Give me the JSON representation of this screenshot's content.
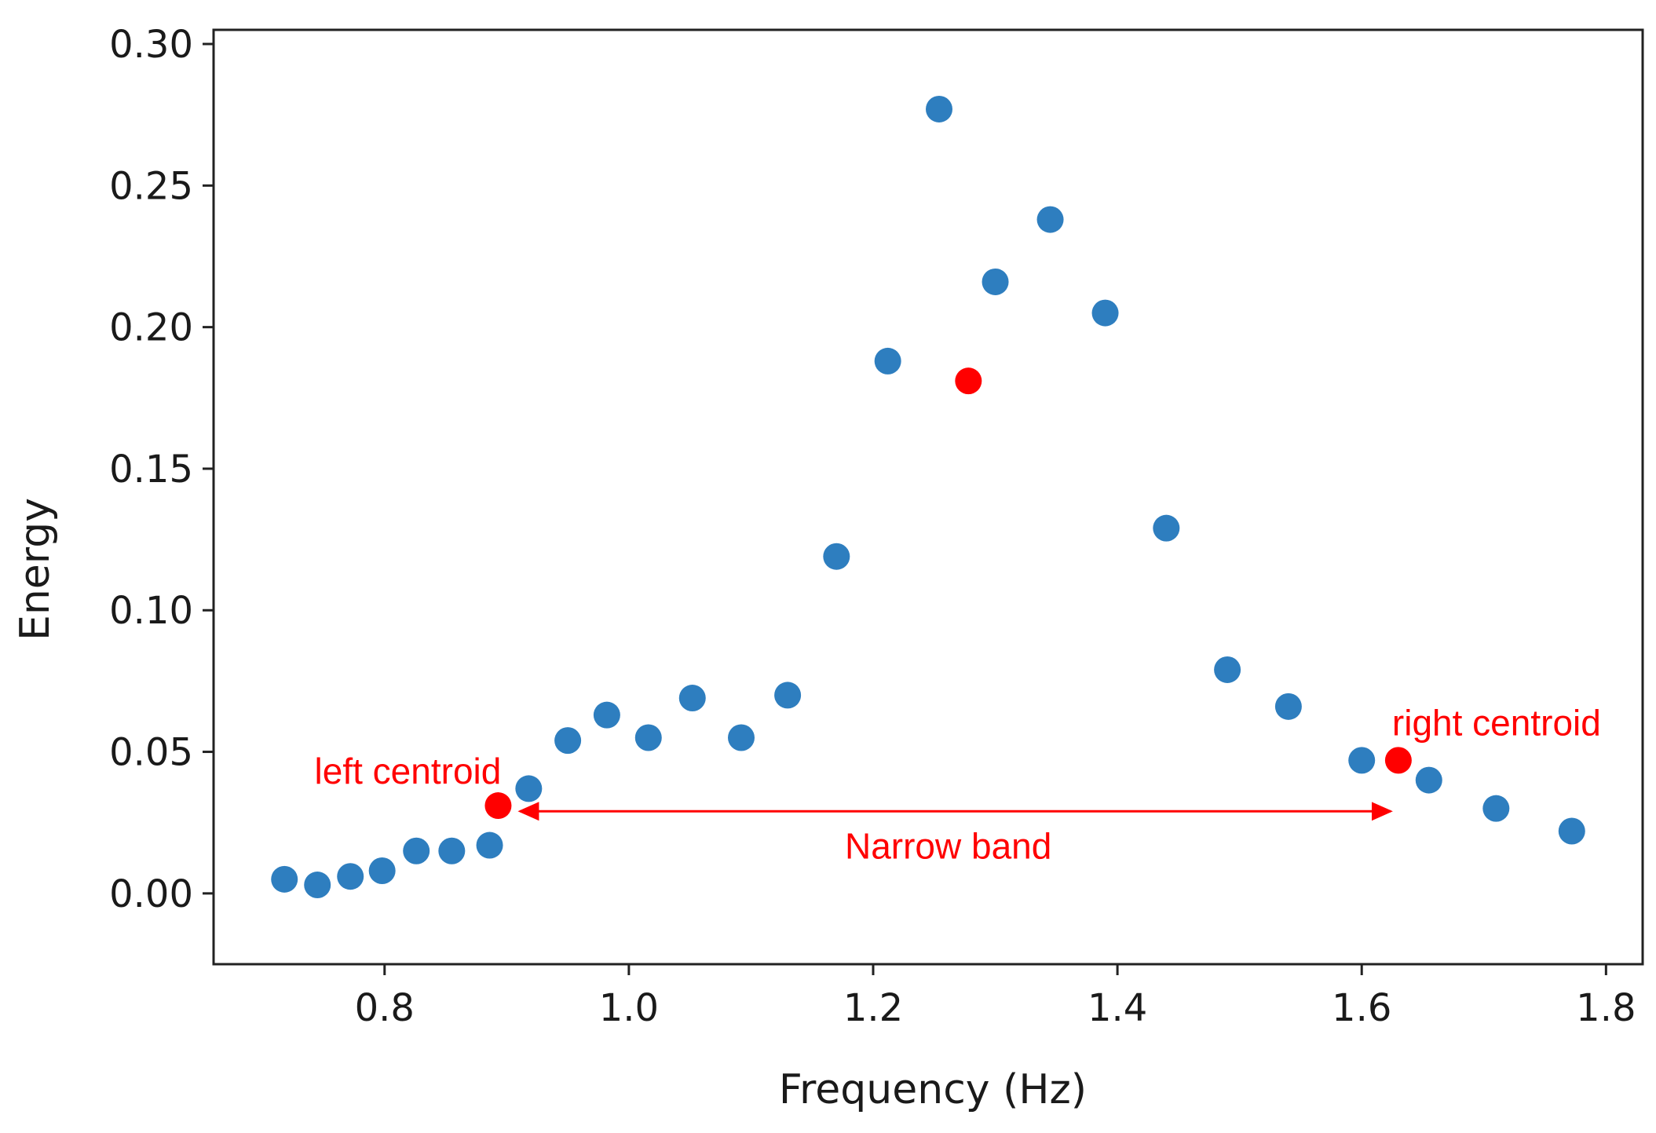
{
  "chart_data": {
    "type": "scatter",
    "xlabel": "Frequency (Hz)",
    "ylabel": "Energy",
    "xlim": [
      0.66,
      1.83
    ],
    "ylim": [
      -0.025,
      0.305
    ],
    "xticks": [
      0.8,
      1.0,
      1.2,
      1.4,
      1.6,
      1.8
    ],
    "xtick_labels": [
      "0.8",
      "1.0",
      "1.2",
      "1.4",
      "1.6",
      "1.8"
    ],
    "yticks": [
      0.0,
      0.05,
      0.1,
      0.15,
      0.2,
      0.25,
      0.3
    ],
    "ytick_labels": [
      "0.00",
      "0.05",
      "0.10",
      "0.15",
      "0.20",
      "0.25",
      "0.30"
    ],
    "grid": false,
    "series": [
      {
        "color": "#2e7ebf",
        "points": [
          [
            0.718,
            0.005
          ],
          [
            0.745,
            0.003
          ],
          [
            0.772,
            0.006
          ],
          [
            0.798,
            0.008
          ],
          [
            0.826,
            0.015
          ],
          [
            0.855,
            0.015
          ],
          [
            0.886,
            0.017
          ],
          [
            0.918,
            0.037
          ],
          [
            0.95,
            0.054
          ],
          [
            0.982,
            0.063
          ],
          [
            1.016,
            0.055
          ],
          [
            1.052,
            0.069
          ],
          [
            1.092,
            0.055
          ],
          [
            1.13,
            0.07
          ],
          [
            1.17,
            0.119
          ],
          [
            1.212,
            0.188
          ],
          [
            1.254,
            0.277
          ],
          [
            1.3,
            0.216
          ],
          [
            1.345,
            0.238
          ],
          [
            1.39,
            0.205
          ],
          [
            1.44,
            0.129
          ],
          [
            1.49,
            0.079
          ],
          [
            1.54,
            0.066
          ],
          [
            1.6,
            0.047
          ],
          [
            1.655,
            0.04
          ],
          [
            1.71,
            0.03
          ],
          [
            1.772,
            0.022
          ]
        ]
      },
      {
        "color": "#ff0000",
        "points": [
          [
            0.893,
            0.031
          ],
          [
            1.278,
            0.181
          ],
          [
            1.63,
            0.047
          ]
        ]
      }
    ],
    "annotations": {
      "left_label": "left centroid",
      "right_label": "right centroid",
      "band_label": "Narrow band",
      "band_from": 0.893,
      "band_to": 1.63,
      "band_y": 0.029,
      "color": "#ff0000"
    }
  }
}
